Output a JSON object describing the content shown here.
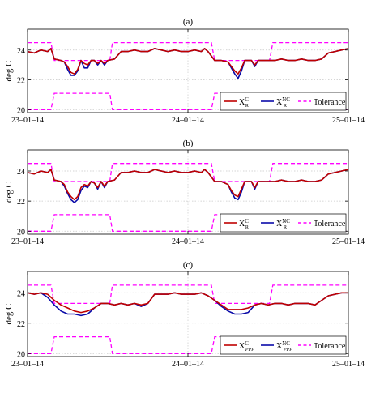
{
  "ylabel": "deg C",
  "x_tick_labels": [
    "23–01–14",
    "24–01–14",
    "25–01–14"
  ],
  "colors": {
    "controlled": "#c00000",
    "uncontrolled": "#0a0aa8",
    "tolerance": "#ff00ff"
  },
  "chart_data": [
    {
      "type": "line",
      "title": "(a)",
      "ylabel": "deg C",
      "x_ticks": [
        "23–01–14",
        "24–01–14",
        "25–01–14"
      ],
      "xlim": [
        0,
        48
      ],
      "ylim": [
        19.8,
        25.4
      ],
      "y_ticks": [
        20,
        22,
        24
      ],
      "grid": true,
      "legend_position": "bottom-right",
      "legend": [
        {
          "main": "X",
          "sup": "C",
          "sub": "R"
        },
        {
          "main": "X",
          "sup": "NC",
          "sub": "R"
        },
        {
          "main": "Tolerance"
        }
      ],
      "series": [
        {
          "name": "Tolerance",
          "segments": [
            {
              "x": [
                0,
                3.5,
                4,
                12.3,
                12.7,
                27.5,
                28,
                36.2,
                36.7,
                48
              ],
              "y": [
                24.5,
                24.5,
                23.3,
                23.3,
                24.5,
                24.5,
                23.3,
                23.3,
                24.5,
                24.5
              ]
            },
            {
              "x": [
                0,
                3.5,
                4,
                12.3,
                12.7,
                27.5,
                28,
                36.2,
                36.7,
                48
              ],
              "y": [
                20.0,
                20.0,
                21.1,
                21.1,
                20.0,
                20.0,
                21.1,
                21.1,
                20.0,
                20.0
              ]
            }
          ]
        },
        {
          "name": "X_R^NC",
          "x": [
            0,
            1,
            2,
            3,
            3.5,
            4,
            5,
            5.5,
            6,
            6.5,
            7,
            7.5,
            8,
            8.5,
            9,
            9.5,
            10,
            10.5,
            11,
            11.5,
            12,
            13,
            14,
            15,
            16,
            17,
            18,
            19,
            20,
            21,
            22,
            23,
            24,
            25,
            26,
            26.5,
            27,
            27.5,
            28,
            29,
            30,
            30.5,
            31,
            31.5,
            32,
            32.5,
            33,
            33.5,
            34,
            34.5,
            35,
            35.5,
            36,
            37,
            38,
            39,
            40,
            41,
            42,
            43,
            44,
            45,
            46,
            47,
            48
          ],
          "y": [
            23.9,
            23.8,
            24.0,
            23.9,
            24.1,
            23.4,
            23.3,
            23.2,
            22.7,
            22.3,
            22.3,
            22.6,
            23.3,
            22.8,
            22.8,
            23.3,
            23.3,
            23.0,
            23.3,
            23.0,
            23.3,
            23.4,
            23.9,
            23.9,
            24.0,
            23.9,
            23.9,
            24.1,
            24.0,
            23.9,
            24.0,
            23.9,
            23.9,
            24.0,
            23.9,
            24.1,
            23.9,
            23.6,
            23.3,
            23.3,
            23.2,
            22.8,
            22.4,
            22.1,
            22.6,
            23.3,
            23.3,
            23.3,
            22.9,
            23.3,
            23.3,
            23.3,
            23.3,
            23.3,
            23.4,
            23.3,
            23.3,
            23.4,
            23.3,
            23.3,
            23.4,
            23.8,
            23.9,
            24.0,
            24.1
          ]
        },
        {
          "name": "X_R^C",
          "x": [
            0,
            1,
            2,
            3,
            3.5,
            4,
            5,
            5.5,
            6,
            6.5,
            7,
            7.5,
            8,
            8.5,
            9,
            9.5,
            10,
            10.5,
            11,
            11.5,
            12,
            13,
            14,
            15,
            16,
            17,
            18,
            19,
            20,
            21,
            22,
            23,
            24,
            25,
            26,
            26.5,
            27,
            27.5,
            28,
            29,
            30,
            30.5,
            31,
            31.5,
            32,
            32.5,
            33,
            33.5,
            34,
            34.5,
            35,
            35.5,
            36,
            37,
            38,
            39,
            40,
            41,
            42,
            43,
            44,
            45,
            46,
            47,
            48
          ],
          "y": [
            23.9,
            23.8,
            24.0,
            23.9,
            24.1,
            23.4,
            23.3,
            23.2,
            22.9,
            22.5,
            22.4,
            22.7,
            23.3,
            23.1,
            23.0,
            23.3,
            23.3,
            23.1,
            23.3,
            23.1,
            23.3,
            23.4,
            23.9,
            23.9,
            24.0,
            23.9,
            23.9,
            24.1,
            24.0,
            23.9,
            24.0,
            23.9,
            23.9,
            24.0,
            23.9,
            24.1,
            23.9,
            23.6,
            23.3,
            23.3,
            23.2,
            22.9,
            22.6,
            22.4,
            22.8,
            23.3,
            23.3,
            23.3,
            23.0,
            23.3,
            23.3,
            23.3,
            23.3,
            23.3,
            23.4,
            23.3,
            23.3,
            23.4,
            23.3,
            23.3,
            23.4,
            23.8,
            23.9,
            24.0,
            24.1
          ]
        }
      ]
    },
    {
      "type": "line",
      "title": "(b)",
      "ylabel": "deg C",
      "x_ticks": [
        "23–01–14",
        "24–01–14",
        "25–01–14"
      ],
      "xlim": [
        0,
        48
      ],
      "ylim": [
        19.8,
        25.4
      ],
      "y_ticks": [
        20,
        22,
        24
      ],
      "grid": true,
      "legend_position": "bottom-right",
      "legend": [
        {
          "main": "X",
          "sup": "C",
          "sub": "R"
        },
        {
          "main": "X",
          "sup": "NC",
          "sub": "R"
        },
        {
          "main": "Tolerance"
        }
      ],
      "series": [
        {
          "name": "Tolerance",
          "segments": [
            {
              "x": [
                0,
                3.5,
                4,
                12.3,
                12.7,
                27.5,
                28,
                36.2,
                36.7,
                48
              ],
              "y": [
                24.5,
                24.5,
                23.3,
                23.3,
                24.5,
                24.5,
                23.3,
                23.3,
                24.5,
                24.5
              ]
            },
            {
              "x": [
                0,
                3.5,
                4,
                12.3,
                12.7,
                27.5,
                28,
                36.2,
                36.7,
                48
              ],
              "y": [
                20.0,
                20.0,
                21.1,
                21.1,
                20.0,
                20.0,
                21.1,
                21.1,
                20.0,
                20.0
              ]
            }
          ]
        },
        {
          "name": "X_R^NC",
          "x": [
            0,
            1,
            2,
            3,
            3.5,
            4,
            5,
            5.5,
            6,
            6.5,
            7,
            7.5,
            8,
            8.5,
            9,
            9.5,
            10,
            10.5,
            11,
            11.5,
            12,
            13,
            14,
            15,
            16,
            17,
            18,
            19,
            20,
            21,
            22,
            23,
            24,
            25,
            26,
            26.5,
            27,
            27.5,
            28,
            29,
            30,
            30.5,
            31,
            31.5,
            32,
            32.5,
            33,
            33.5,
            34,
            34.5,
            35,
            35.5,
            36,
            37,
            38,
            39,
            40,
            41,
            42,
            43,
            44,
            45,
            46,
            47,
            48
          ],
          "y": [
            23.9,
            23.8,
            24.0,
            23.9,
            24.1,
            23.4,
            23.3,
            23.0,
            22.5,
            22.1,
            21.9,
            22.1,
            22.7,
            23.0,
            22.9,
            23.3,
            23.2,
            22.8,
            23.3,
            22.9,
            23.3,
            23.4,
            23.9,
            23.9,
            24.0,
            23.9,
            23.9,
            24.1,
            24.0,
            23.9,
            24.0,
            23.9,
            23.9,
            24.0,
            23.9,
            24.1,
            23.9,
            23.6,
            23.3,
            23.3,
            23.1,
            22.6,
            22.2,
            22.1,
            22.6,
            23.3,
            23.3,
            23.3,
            22.8,
            23.3,
            23.3,
            23.3,
            23.3,
            23.3,
            23.4,
            23.3,
            23.3,
            23.4,
            23.3,
            23.3,
            23.4,
            23.8,
            23.9,
            24.0,
            24.1
          ]
        },
        {
          "name": "X_R^C",
          "x": [
            0,
            1,
            2,
            3,
            3.5,
            4,
            5,
            5.5,
            6,
            6.5,
            7,
            7.5,
            8,
            8.5,
            9,
            9.5,
            10,
            10.5,
            11,
            11.5,
            12,
            13,
            14,
            15,
            16,
            17,
            18,
            19,
            20,
            21,
            22,
            23,
            24,
            25,
            26,
            26.5,
            27,
            27.5,
            28,
            29,
            30,
            30.5,
            31,
            31.5,
            32,
            32.5,
            33,
            33.5,
            34,
            34.5,
            35,
            35.5,
            36,
            37,
            38,
            39,
            40,
            41,
            42,
            43,
            44,
            45,
            46,
            47,
            48
          ],
          "y": [
            23.9,
            23.8,
            24.0,
            23.9,
            24.1,
            23.4,
            23.3,
            23.1,
            22.6,
            22.3,
            22.1,
            22.3,
            22.9,
            23.1,
            23.0,
            23.3,
            23.2,
            22.9,
            23.3,
            23.0,
            23.3,
            23.4,
            23.9,
            23.9,
            24.0,
            23.9,
            23.9,
            24.1,
            24.0,
            23.9,
            24.0,
            23.9,
            23.9,
            24.0,
            23.9,
            24.1,
            23.9,
            23.6,
            23.3,
            23.3,
            23.1,
            22.7,
            22.4,
            22.3,
            22.8,
            23.3,
            23.3,
            23.3,
            22.9,
            23.3,
            23.3,
            23.3,
            23.3,
            23.3,
            23.4,
            23.3,
            23.3,
            23.4,
            23.3,
            23.3,
            23.4,
            23.8,
            23.9,
            24.0,
            24.1
          ]
        }
      ]
    },
    {
      "type": "line",
      "title": "(c)",
      "ylabel": "deg C",
      "x_ticks": [
        "23–01–14",
        "24–01–14",
        "25–01–14"
      ],
      "xlim": [
        0,
        48
      ],
      "ylim": [
        19.8,
        25.4
      ],
      "y_ticks": [
        20,
        22,
        24
      ],
      "grid": true,
      "legend_position": "bottom-right",
      "legend": [
        {
          "main": "X",
          "sup": "C",
          "sub": "PPP"
        },
        {
          "main": "X",
          "sup": "NC",
          "sub": "PPP"
        },
        {
          "main": "Tolerance"
        }
      ],
      "series": [
        {
          "name": "Tolerance",
          "segments": [
            {
              "x": [
                0,
                3.5,
                4,
                12.3,
                12.7,
                27.5,
                28,
                36.2,
                36.7,
                48
              ],
              "y": [
                24.5,
                24.5,
                23.3,
                23.3,
                24.5,
                24.5,
                23.3,
                23.3,
                24.5,
                24.5
              ]
            },
            {
              "x": [
                0,
                3.5,
                4,
                12.3,
                12.7,
                27.5,
                28,
                36.2,
                36.7,
                48
              ],
              "y": [
                20.0,
                20.0,
                21.1,
                21.1,
                20.0,
                20.0,
                21.1,
                21.1,
                20.0,
                20.0
              ]
            }
          ]
        },
        {
          "name": "X_PPP^NC",
          "x": [
            0,
            1,
            2,
            3,
            4,
            5,
            6,
            7,
            8,
            9,
            10,
            11,
            12,
            13,
            14,
            15,
            16,
            17,
            18,
            19,
            20,
            21,
            22,
            23,
            24,
            25,
            26,
            27,
            28,
            29,
            30,
            31,
            32,
            33,
            34,
            35,
            36,
            37,
            38,
            39,
            40,
            41,
            42,
            43,
            44,
            45,
            46,
            47,
            48
          ],
          "y": [
            24.0,
            23.9,
            24.0,
            23.7,
            23.2,
            22.8,
            22.6,
            22.6,
            22.5,
            22.6,
            23.0,
            23.3,
            23.3,
            23.2,
            23.3,
            23.2,
            23.3,
            23.1,
            23.3,
            23.9,
            23.9,
            23.9,
            24.0,
            23.9,
            23.9,
            23.9,
            24.0,
            23.8,
            23.5,
            23.1,
            22.8,
            22.6,
            22.6,
            22.7,
            23.2,
            23.3,
            23.2,
            23.3,
            23.3,
            23.2,
            23.3,
            23.3,
            23.3,
            23.2,
            23.5,
            23.8,
            23.9,
            24.0,
            24.0
          ]
        },
        {
          "name": "X_PPP^C",
          "x": [
            0,
            1,
            2,
            3,
            4,
            5,
            6,
            7,
            8,
            9,
            10,
            11,
            12,
            13,
            14,
            15,
            16,
            17,
            18,
            19,
            20,
            21,
            22,
            23,
            24,
            25,
            26,
            27,
            28,
            29,
            30,
            31,
            32,
            33,
            34,
            35,
            36,
            37,
            38,
            39,
            40,
            41,
            42,
            43,
            44,
            45,
            46,
            47,
            48
          ],
          "y": [
            24.0,
            23.9,
            24.0,
            23.9,
            23.5,
            23.2,
            23.0,
            22.8,
            22.7,
            22.8,
            23.0,
            23.3,
            23.3,
            23.2,
            23.3,
            23.2,
            23.3,
            23.2,
            23.3,
            23.9,
            23.9,
            23.9,
            24.0,
            23.9,
            23.9,
            23.9,
            24.0,
            23.8,
            23.5,
            23.2,
            22.9,
            22.9,
            22.9,
            23.0,
            23.2,
            23.3,
            23.2,
            23.3,
            23.3,
            23.2,
            23.3,
            23.3,
            23.3,
            23.2,
            23.5,
            23.8,
            23.9,
            24.0,
            24.0
          ]
        }
      ]
    }
  ]
}
